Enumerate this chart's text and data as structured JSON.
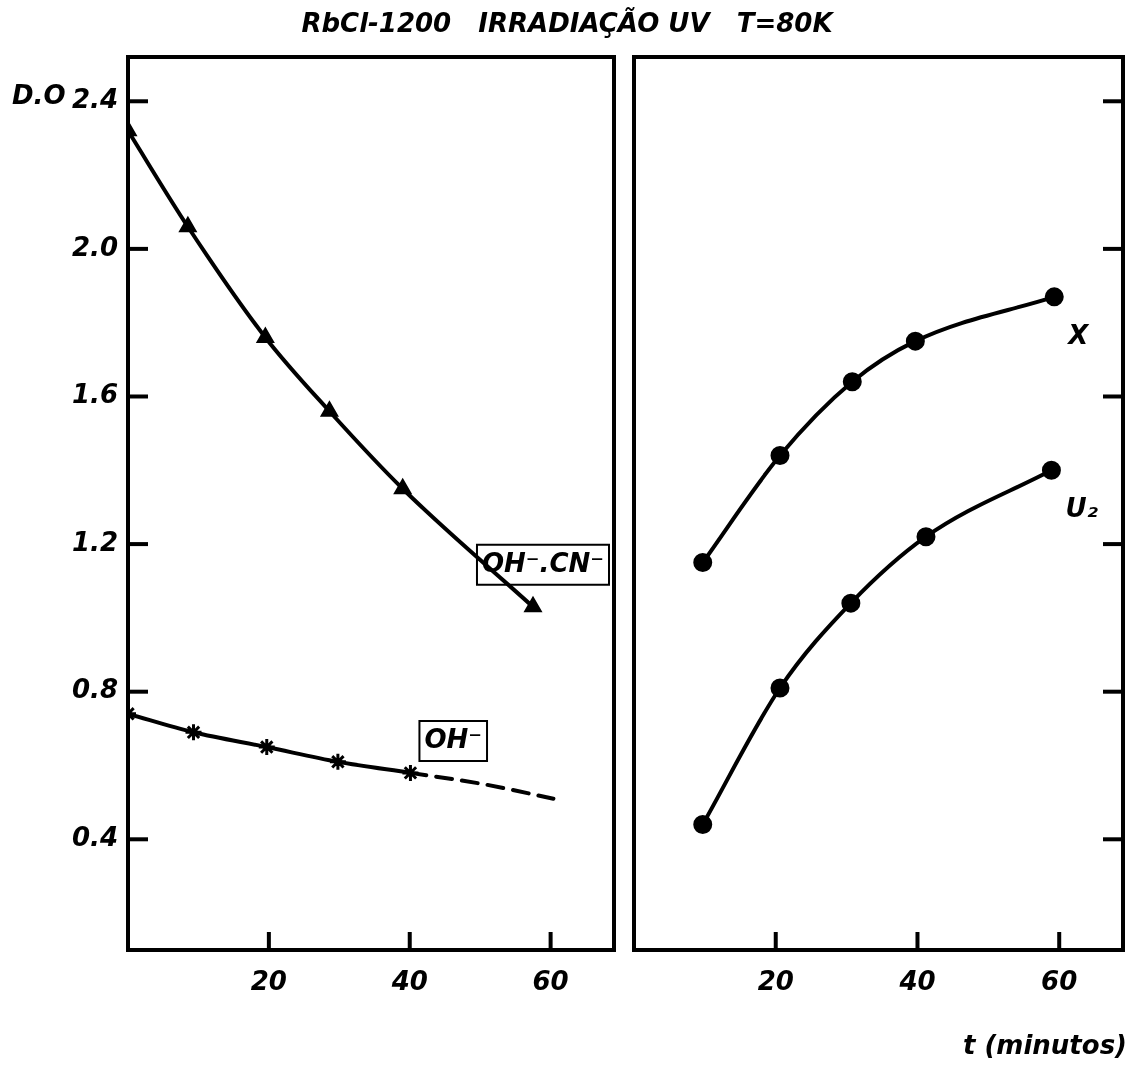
{
  "chart_data": [
    {
      "type": "line",
      "title": "RbCl-1200   IRRADIAÇÃO UV   T=80K",
      "ylabel": "D.O",
      "xlim": [
        0,
        69
      ],
      "xticks": [
        20,
        40,
        60
      ],
      "ylim": [
        0.1,
        2.52
      ],
      "yticks": [
        0.4,
        0.8,
        1.2,
        1.6,
        {
          "value": 2,
          "label": "2.0"
        },
        2.4
      ],
      "legend": false,
      "grid": false,
      "series": [
        {
          "name": "OH⁻.CN⁻",
          "color": "#000000",
          "marker": "triangle",
          "line_style": "solid",
          "x": [
            0,
            8.5,
            19.5,
            28.6,
            39,
            57.5
          ],
          "values": [
            2.32,
            2.06,
            1.76,
            1.56,
            1.35,
            1.03
          ]
        },
        {
          "name": "OH⁻",
          "color": "#000000",
          "marker": "cross",
          "line_style": "solid",
          "x": [
            0,
            9.3,
            19.7,
            29.8,
            40.1
          ],
          "values": [
            0.74,
            0.69,
            0.65,
            0.61,
            0.58
          ]
        },
        {
          "color": "#000000",
          "marker": "none",
          "line_style": "dashed",
          "x": [
            40.1,
            50.3,
            60.4
          ],
          "values": [
            0.58,
            0.55,
            0.51
          ]
        }
      ]
    },
    {
      "type": "line",
      "xlabel": "t (minutos)",
      "xlim": [
        0,
        69
      ],
      "xticks": [
        20,
        40,
        60
      ],
      "ylim": [
        0.1,
        2.52
      ],
      "yticks": [
        0.4,
        0.8,
        1.2,
        1.6,
        2,
        2.4
      ],
      "tick_labels": "x",
      "legend": false,
      "grid": false,
      "series": [
        {
          "name": "X",
          "color": "#000000",
          "marker": "circle",
          "line_style": "solid",
          "x": [
            9.7,
            20.6,
            30.8,
            39.7,
            59.3
          ],
          "values": [
            1.15,
            1.44,
            1.64,
            1.75,
            1.87
          ]
        },
        {
          "name": "U₂",
          "color": "#000000",
          "marker": "circle",
          "line_style": "solid",
          "x": [
            9.7,
            20.6,
            30.6,
            41.2,
            58.9
          ],
          "values": [
            0.44,
            0.81,
            1.04,
            1.22,
            1.4
          ]
        }
      ]
    }
  ]
}
